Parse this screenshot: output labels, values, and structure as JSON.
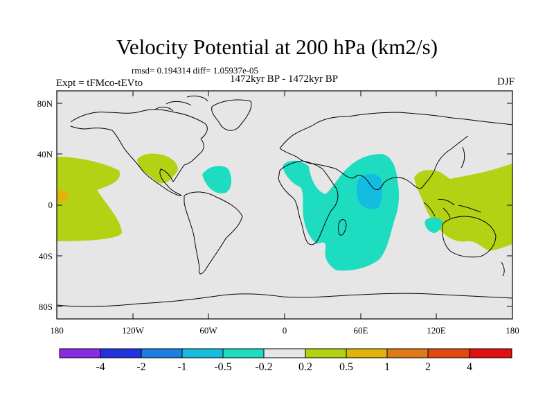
{
  "header": {
    "title": "Velocity Potential at 200 hPa (km2/s)",
    "stats": "rmsd= 0.194314 diff= 1.05937e-05",
    "period": "1472kyr BP - 1472kyr BP",
    "experiment": "Expt = tFMco-tEVto",
    "season": "DJF"
  },
  "axes": {
    "lat_labels": [
      "80N",
      "40N",
      "0",
      "40S",
      "80S"
    ],
    "lon_labels": [
      "180",
      "120W",
      "60W",
      "0",
      "60E",
      "120E",
      "180"
    ]
  },
  "colorbar": {
    "colors": [
      "#8a2be2",
      "#2233dd",
      "#1a7fe0",
      "#12bde0",
      "#1edcc0",
      "#e6e6e6",
      "#b4d214",
      "#e0b40a",
      "#e07a18",
      "#e04a10",
      "#e01010"
    ],
    "labels": [
      "-4",
      "-2",
      "-1",
      "-0.5",
      "-0.2",
      "0.2",
      "0.5",
      "1",
      "2",
      "4"
    ]
  },
  "colors": {
    "background_field": "#e6e6e6",
    "positive_weak": "#b4d214",
    "positive_mid": "#e0b40a",
    "negative_weak": "#1edcc0",
    "negative_mid": "#12bde0",
    "coastline": "#000000"
  }
}
